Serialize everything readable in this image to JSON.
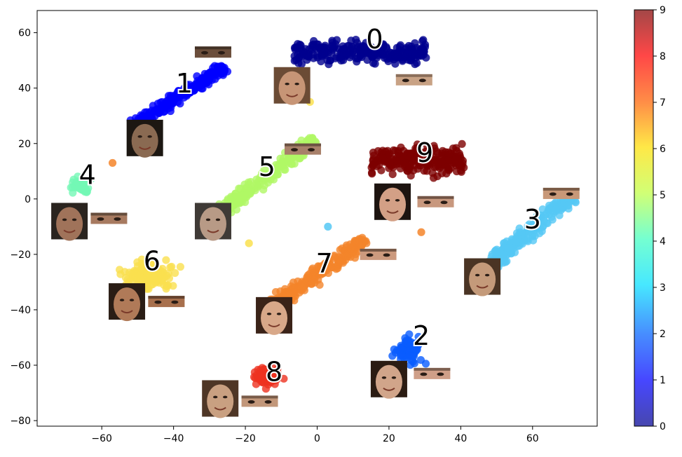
{
  "chart_data": {
    "type": "scatter",
    "title": "",
    "xlabel": "",
    "ylabel": "",
    "xlim": [
      -78,
      78
    ],
    "ylim": [
      -82,
      68
    ],
    "x_ticks": [
      -60,
      -40,
      -20,
      0,
      20,
      40,
      60
    ],
    "y_ticks": [
      -80,
      -60,
      -40,
      -20,
      0,
      20,
      40,
      60
    ],
    "grid": false,
    "colormap": "jet",
    "colorbar": {
      "min": 0,
      "max": 9,
      "ticks": [
        0,
        1,
        2,
        3,
        4,
        5,
        6,
        7,
        8,
        9
      ]
    },
    "clusters": [
      {
        "label": "0",
        "color": "#00008f",
        "x_range": [
          -8,
          32
        ],
        "y_range": [
          44,
          62
        ],
        "count": 260,
        "shape": "wide"
      },
      {
        "label": "1",
        "color": "#0000ff",
        "x_range": [
          -52,
          -25
        ],
        "y_range": [
          26,
          48
        ],
        "count": 210,
        "shape": "diag"
      },
      {
        "label": "2",
        "color": "#0a5cff",
        "x_range": [
          18,
          32
        ],
        "y_range": [
          -64,
          -46
        ],
        "count": 80,
        "shape": "blob"
      },
      {
        "label": "3",
        "color": "#55c8f5",
        "x_range": [
          44,
          72
        ],
        "y_range": [
          -28,
          2
        ],
        "count": 230,
        "shape": "diag"
      },
      {
        "label": "4",
        "color": "#73f7b5",
        "x_range": [
          -72,
          -60
        ],
        "y_range": [
          0,
          10
        ],
        "count": 45,
        "shape": "blob"
      },
      {
        "label": "5",
        "color": "#b0f765",
        "x_range": [
          -30,
          0
        ],
        "y_range": [
          -8,
          22
        ],
        "count": 240,
        "shape": "diag"
      },
      {
        "label": "6",
        "color": "#fae04f",
        "x_range": [
          -58,
          -36
        ],
        "y_range": [
          -36,
          -18
        ],
        "count": 150,
        "shape": "blob"
      },
      {
        "label": "7",
        "color": "#f4852a",
        "x_range": [
          -16,
          14
        ],
        "y_range": [
          -42,
          -14
        ],
        "count": 240,
        "shape": "diag"
      },
      {
        "label": "8",
        "color": "#ee3220",
        "x_range": [
          -20,
          -8
        ],
        "y_range": [
          -70,
          -58
        ],
        "count": 70,
        "shape": "blob"
      },
      {
        "label": "9",
        "color": "#7d0000",
        "x_range": [
          14,
          42
        ],
        "y_range": [
          2,
          26
        ],
        "count": 230,
        "shape": "wide"
      }
    ],
    "outliers": [
      {
        "x": -57,
        "y": 13,
        "color": "#f4852a"
      },
      {
        "x": 29,
        "y": -12,
        "color": "#f4852a"
      },
      {
        "x": 3,
        "y": -10,
        "color": "#55c8f5"
      },
      {
        "x": -19,
        "y": -16,
        "color": "#fae04f"
      },
      {
        "x": -2,
        "y": 35,
        "color": "#fae04f"
      }
    ],
    "annotations": [
      {
        "text": "0",
        "x": 16,
        "y": 57
      },
      {
        "text": "1",
        "x": -37,
        "y": 41
      },
      {
        "text": "2",
        "x": 29,
        "y": -50
      },
      {
        "text": "3",
        "x": 60,
        "y": -8
      },
      {
        "text": "4",
        "x": -64,
        "y": 8
      },
      {
        "text": "5",
        "x": -14,
        "y": 11
      },
      {
        "text": "6",
        "x": -46,
        "y": -23
      },
      {
        "text": "7",
        "x": 2,
        "y": -24
      },
      {
        "text": "8",
        "x": -12,
        "y": -63
      },
      {
        "text": "9",
        "x": 30,
        "y": 16
      }
    ],
    "face_thumbnails": [
      {
        "cluster": "0",
        "kind": "face",
        "x": -7,
        "y": 41,
        "skin": "#c79576",
        "hair": "#6b4b35"
      },
      {
        "cluster": "0",
        "kind": "eyes",
        "x": 27,
        "y": 43,
        "skin": "#c8a285",
        "hair": "#5a4536"
      },
      {
        "cluster": "1",
        "kind": "face",
        "x": -48,
        "y": 22,
        "skin": "#8a6a52",
        "hair": "#1c1712"
      },
      {
        "cluster": "1",
        "kind": "eyes",
        "x": -29,
        "y": 53,
        "skin": "#6b4e3b",
        "hair": "#201a14"
      },
      {
        "cluster": "2",
        "kind": "face",
        "x": 20,
        "y": -65,
        "skin": "#d1a58a",
        "hair": "#2b1c13"
      },
      {
        "cluster": "2",
        "kind": "eyes",
        "x": 32,
        "y": -63,
        "skin": "#cf9f88",
        "hair": "#3a2a20"
      },
      {
        "cluster": "3",
        "kind": "face",
        "x": 46,
        "y": -28,
        "skin": "#c49a7a",
        "hair": "#4a3424"
      },
      {
        "cluster": "3",
        "kind": "eyes",
        "x": 68,
        "y": 2,
        "skin": "#c89878",
        "hair": "#3b2a1e"
      },
      {
        "cluster": "4",
        "kind": "face",
        "x": -69,
        "y": -8,
        "skin": "#a0735a",
        "hair": "#2a241f"
      },
      {
        "cluster": "4",
        "kind": "eyes",
        "x": -58,
        "y": -7,
        "skin": "#a77a60",
        "hair": "#30261d"
      },
      {
        "cluster": "5",
        "kind": "face",
        "x": -29,
        "y": -8,
        "skin": "#b89a86",
        "hair": "#3f3a36"
      },
      {
        "cluster": "5",
        "kind": "eyes",
        "x": -4,
        "y": 18,
        "skin": "#a8806a",
        "hair": "#3a2c22"
      },
      {
        "cluster": "6",
        "kind": "face",
        "x": -53,
        "y": -37,
        "skin": "#b07a58",
        "hair": "#2a1d15"
      },
      {
        "cluster": "6",
        "kind": "eyes",
        "x": -42,
        "y": -37,
        "skin": "#a8704d",
        "hair": "#2b1d14"
      },
      {
        "cluster": "7",
        "kind": "face",
        "x": -12,
        "y": -42,
        "skin": "#d8a889",
        "hair": "#3a2318"
      },
      {
        "cluster": "7",
        "kind": "eyes",
        "x": 17,
        "y": -20,
        "skin": "#cc9a7e",
        "hair": "#2f2018"
      },
      {
        "cluster": "8",
        "kind": "face",
        "x": -27,
        "y": -72,
        "skin": "#c9a081",
        "hair": "#4e3626"
      },
      {
        "cluster": "8",
        "kind": "eyes",
        "x": -16,
        "y": -73,
        "skin": "#c2977a",
        "hair": "#3e2b20"
      },
      {
        "cluster": "9",
        "kind": "face",
        "x": 21,
        "y": -1,
        "skin": "#d3a086",
        "hair": "#1d1410"
      },
      {
        "cluster": "9",
        "kind": "eyes",
        "x": 33,
        "y": -1,
        "skin": "#c8987e",
        "hair": "#2b1d16"
      }
    ]
  }
}
